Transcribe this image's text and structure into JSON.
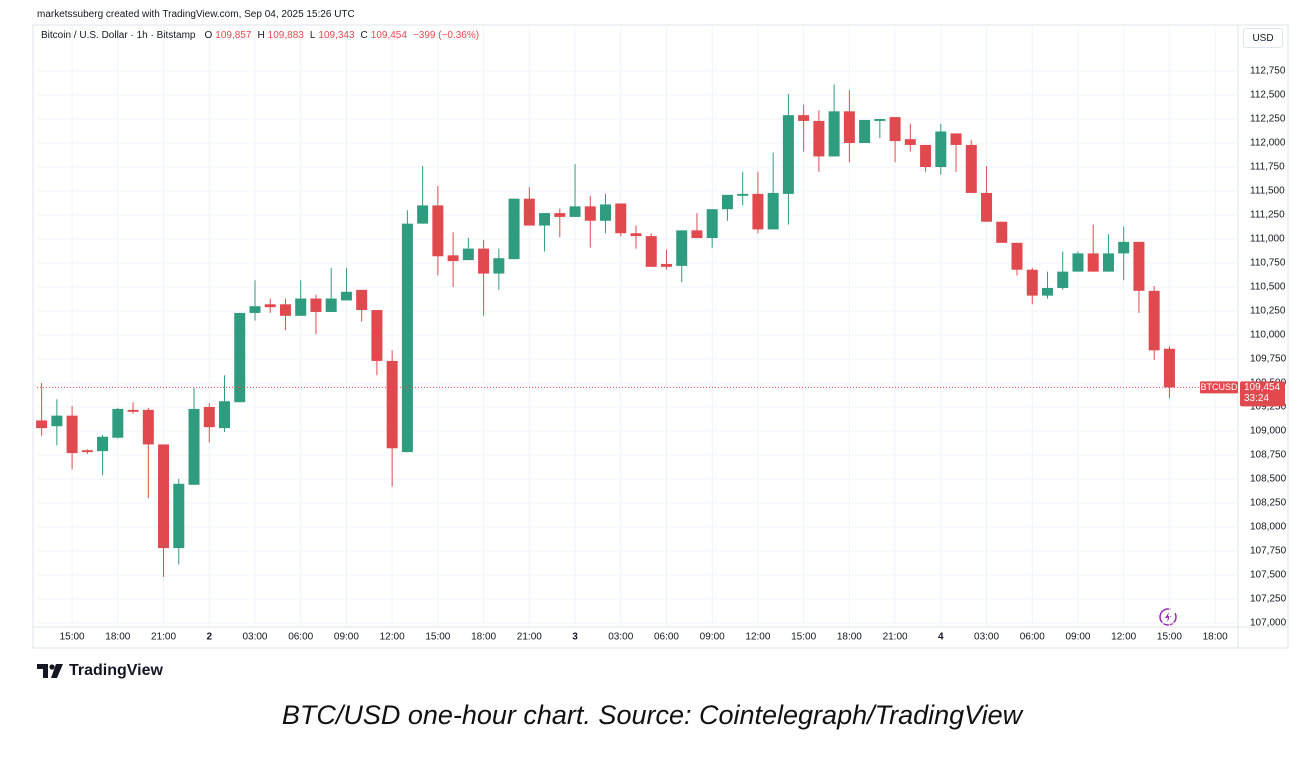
{
  "header": {
    "credit": "marketssuberg created with TradingView.com, Sep 04, 2025 15:26 UTC"
  },
  "chart_data": {
    "type": "candlestick",
    "title": "Bitcoin / U.S. Dollar · 1h · Bitstamp",
    "legend": [
      {
        "label": "O",
        "value": "109,857"
      },
      {
        "label": "H",
        "value": "109,883"
      },
      {
        "label": "L",
        "value": "109,343"
      },
      {
        "label": "C",
        "value": "109,454"
      }
    ],
    "change": "−399 (−0.36%)",
    "currency": "USD",
    "symbol": "BTCUSD",
    "last_price": {
      "value": 109454,
      "label": "109,454"
    },
    "countdown": "33:24",
    "up_color": "#2f9c80",
    "down_color": "#e04a4f",
    "grid": true,
    "categories": [
      null,
      null,
      "15:00",
      null,
      null,
      "18:00",
      null,
      null,
      "21:00",
      null,
      null,
      "2",
      null,
      null,
      "03:00",
      null,
      null,
      "06:00",
      null,
      null,
      "09:00",
      null,
      null,
      "12:00",
      null,
      null,
      "15:00",
      null,
      null,
      "18:00",
      null,
      null,
      "21:00",
      null,
      null,
      "3",
      null,
      null,
      "03:00",
      null,
      null,
      "06:00",
      null,
      null,
      "09:00",
      null,
      null,
      "12:00",
      null,
      null,
      "15:00",
      null,
      null,
      "18:00",
      null,
      null,
      "21:00",
      null,
      null,
      "4",
      null,
      null,
      "03:00",
      null,
      null,
      "06:00",
      null,
      null,
      "09:00",
      null,
      null,
      "12:00",
      null,
      null,
      "15:00",
      null,
      null,
      "18:00",
      null
    ],
    "open": [
      109110,
      109050,
      109160,
      108800,
      108790,
      108930,
      109220,
      109220,
      108860,
      107780,
      108440,
      109250,
      109030,
      109300,
      110230,
      110320,
      110320,
      110200,
      110380,
      110240,
      110360,
      110470,
      110260,
      109730,
      108780,
      111160,
      111350,
      110830,
      110780,
      110900,
      110640,
      110790,
      111420,
      111140,
      111270,
      111230,
      111340,
      111190,
      111370,
      111060,
      111030,
      110740,
      110720,
      111090,
      111010,
      111310,
      111450,
      111470,
      111100,
      111470,
      112290,
      112230,
      111860,
      112330,
      112000,
      112230,
      112270,
      112040,
      111980,
      111750,
      112100,
      111980,
      111480,
      111180,
      110960,
      110680,
      110410,
      110490,
      110660,
      110850,
      110660,
      110850,
      110970,
      110460,
      109857,
      null,
      null,
      null,
      null
    ],
    "high": [
      109500,
      109330,
      109260,
      108810,
      108960,
      109240,
      109300,
      109240,
      108860,
      108500,
      109450,
      109290,
      109580,
      110230,
      110570,
      110380,
      110380,
      110570,
      110420,
      110700,
      110700,
      110470,
      110260,
      109840,
      111300,
      111760,
      111550,
      111070,
      111010,
      110990,
      110900,
      111420,
      111540,
      111270,
      111320,
      111780,
      111450,
      111470,
      111370,
      111140,
      111060,
      110890,
      111090,
      111270,
      111310,
      111460,
      111700,
      111700,
      111900,
      112510,
      112400,
      112340,
      112610,
      112550,
      112240,
      112250,
      112270,
      112200,
      111980,
      112200,
      112100,
      112030,
      111760,
      111180,
      110960,
      110700,
      110660,
      110870,
      110870,
      111150,
      111050,
      111130,
      110970,
      110510,
      109883,
      null,
      null,
      null,
      null
    ],
    "low": [
      108950,
      108850,
      108600,
      108760,
      108540,
      108920,
      109180,
      108300,
      107480,
      107610,
      108440,
      108880,
      108990,
      109300,
      110150,
      110230,
      110050,
      110200,
      110010,
      110240,
      110360,
      110140,
      109580,
      108420,
      108780,
      111160,
      110620,
      110500,
      110780,
      110200,
      110470,
      110790,
      111140,
      110870,
      111020,
      111230,
      110910,
      111060,
      111030,
      110900,
      110710,
      110680,
      110550,
      111010,
      110910,
      111190,
      111350,
      111060,
      111100,
      111150,
      111910,
      111700,
      111860,
      111800,
      112000,
      112050,
      111800,
      111910,
      111700,
      111670,
      111700,
      111480,
      111180,
      110960,
      110620,
      110320,
      110380,
      110470,
      110660,
      110660,
      110660,
      110570,
      110230,
      109740,
      109343,
      null,
      null,
      null,
      null
    ],
    "close": [
      109030,
      109160,
      108770,
      108780,
      108940,
      109230,
      109200,
      108860,
      107780,
      108450,
      109230,
      109040,
      109310,
      110230,
      110300,
      110290,
      110200,
      110380,
      110240,
      110380,
      110450,
      110260,
      109730,
      108820,
      111160,
      111350,
      110820,
      110770,
      110900,
      110640,
      110800,
      111420,
      111140,
      111270,
      111230,
      111340,
      111190,
      111360,
      111060,
      111030,
      110710,
      110710,
      111090,
      111010,
      111310,
      111460,
      111470,
      111100,
      111480,
      112290,
      112230,
      111860,
      112330,
      112000,
      112240,
      112250,
      112020,
      111980,
      111750,
      112120,
      111980,
      111480,
      111180,
      110960,
      110680,
      110410,
      110490,
      110660,
      110850,
      110660,
      110850,
      110970,
      110460,
      109840,
      109454,
      null,
      null,
      null,
      null
    ],
    "ylim": [
      106750,
      113200
    ],
    "yticks": [
      {
        "value": 107000,
        "label": "107,000"
      },
      {
        "value": 107250,
        "label": "107,250"
      },
      {
        "value": 107500,
        "label": "107,500"
      },
      {
        "value": 107750,
        "label": "107,750"
      },
      {
        "value": 108000,
        "label": "108,000"
      },
      {
        "value": 108250,
        "label": "108,250"
      },
      {
        "value": 108500,
        "label": "108,500"
      },
      {
        "value": 108750,
        "label": "108,750"
      },
      {
        "value": 109000,
        "label": "109,000"
      },
      {
        "value": 109250,
        "label": "109,250"
      },
      {
        "value": 109500,
        "label": "109,500"
      },
      {
        "value": 109750,
        "label": "109,750"
      },
      {
        "value": 110000,
        "label": "110,000"
      },
      {
        "value": 110250,
        "label": "110,250"
      },
      {
        "value": 110500,
        "label": "110,500"
      },
      {
        "value": 110750,
        "label": "110,750"
      },
      {
        "value": 111000,
        "label": "111,000"
      },
      {
        "value": 111250,
        "label": "111,250"
      },
      {
        "value": 111500,
        "label": "111,500"
      },
      {
        "value": 111750,
        "label": "111,750"
      },
      {
        "value": 112000,
        "label": "112,000"
      },
      {
        "value": 112250,
        "label": "112,250"
      },
      {
        "value": 112500,
        "label": "112,500"
      },
      {
        "value": 112750,
        "label": "112,750"
      }
    ]
  },
  "footer": {
    "logo": "TradingView",
    "caption": "BTC/USD one-hour chart. Source: Cointelegraph/TradingView"
  }
}
